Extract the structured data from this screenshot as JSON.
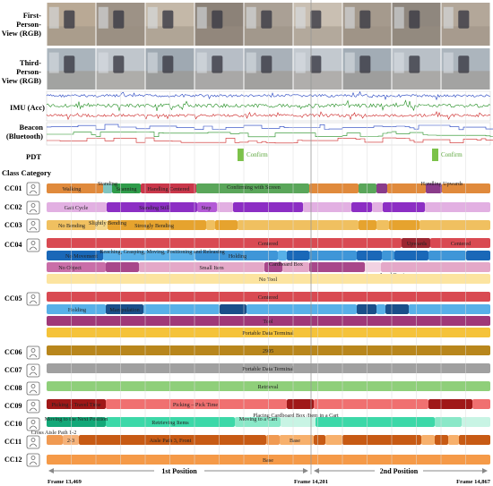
{
  "modalities": {
    "fpv_label": [
      "First-",
      "Person-",
      "View (RGB)"
    ],
    "tpv_label": [
      "Third-",
      "Person-",
      "View (RGB)"
    ],
    "imu_label": "IMU (Acc)",
    "beacon_label": [
      "Beacon",
      "(Bluetooth)"
    ],
    "pdt_label": "PDT",
    "pdt_events": [
      "Confirm",
      "Confirm"
    ]
  },
  "class_category_title": "Class Category",
  "colors": {
    "imu": [
      "#1f3fbf",
      "#1e8c1e",
      "#cc2222"
    ],
    "beacon": [
      "#1f3fbf",
      "#1e8c1e",
      "#cc2222"
    ],
    "pdt": "#7cc24a"
  },
  "rows": [
    {
      "id": "CC01",
      "icon": "body-icon",
      "tracks": [
        {
          "segments": [
            {
              "label": "Walking",
              "color": "#e08a3c"
            },
            {
              "label": "Standing",
              "color": "#7fc4c0"
            },
            {
              "label": "Scanning",
              "color": "#2f9c4a"
            },
            {
              "label": "Handling Centered",
              "color": "#c9374a"
            },
            {
              "label": "Confirming with Screen",
              "color": "#5aa65a"
            },
            {
              "label": "Handling Upwards",
              "color": "#8a3c8a"
            }
          ]
        }
      ]
    },
    {
      "id": "CC02",
      "icon": "legs-icon",
      "tracks": [
        {
          "segments": [
            {
              "label": "Gait Cycle",
              "color": "#e2b0e2"
            },
            {
              "label": "Standing Still",
              "color": "#8c2ec4"
            },
            {
              "label": "Step",
              "color": "#b35ad6"
            }
          ]
        }
      ]
    },
    {
      "id": "CC03",
      "icon": "torso-icon",
      "tracks": [
        {
          "segments": [
            {
              "label": "No Bending",
              "color": "#f0c060"
            },
            {
              "label": "Slightly Bending",
              "color": "#f3d68a"
            },
            {
              "label": "Strongly Bending",
              "color": "#e6a32e"
            }
          ]
        }
      ]
    },
    {
      "id": "CC04",
      "icon": "hand-left-icon",
      "tracks": [
        {
          "segments": [
            {
              "label": "Centered",
              "color": "#d94a52"
            },
            {
              "label": "Upwards",
              "color": "#9c2732"
            },
            {
              "label": "Centered",
              "color": "#d94a52"
            }
          ]
        },
        {
          "segments": [
            {
              "label": "No Movement",
              "color": "#1a68b8"
            },
            {
              "label": "Reaching, Grasping, Moving, Positioning and Releasing",
              "color": "#58b0e8"
            },
            {
              "label": "Holding",
              "color": "#3f96d8"
            }
          ]
        },
        {
          "segments": [
            {
              "label": "No Object",
              "color": "#c96ea8"
            },
            {
              "label": "Small Item",
              "color": "#e4a8c8"
            },
            {
              "label": "Cardboard Box",
              "color": "#a8478a"
            },
            {
              "label": "Load Carrier",
              "color": "#f2d2e2"
            }
          ]
        },
        {
          "segments": [
            {
              "label": "No Tool",
              "color": "#fce4a0"
            }
          ]
        }
      ]
    },
    {
      "id": "CC05",
      "icon": "hand-right-icon",
      "tracks": [
        {
          "segments": [
            {
              "label": "Centered",
              "color": "#d94a52"
            }
          ]
        },
        {
          "segments": [
            {
              "label": "Holding",
              "color": "#58b0e8"
            },
            {
              "label": "Manipulation",
              "color": "#1a4f8a"
            }
          ]
        },
        {
          "segments": [
            {
              "label": "Tool",
              "color": "#a03878"
            }
          ]
        },
        {
          "segments": [
            {
              "label": "Portable Data Terminal",
              "color": "#f5c33a"
            }
          ]
        }
      ]
    },
    {
      "id": "CC06",
      "icon": "clipboard-icon",
      "tracks": [
        {
          "segments": [
            {
              "label": "2905",
              "color": "#b8861c"
            }
          ]
        }
      ]
    },
    {
      "id": "CC07",
      "icon": "document-icon",
      "tracks": [
        {
          "segments": [
            {
              "label": "Portable Data Terminal",
              "color": "#a0a0a0"
            }
          ]
        }
      ]
    },
    {
      "id": "CC08",
      "icon": "scanner-icon",
      "tracks": [
        {
          "segments": [
            {
              "label": "Retrieval",
              "color": "#8fcf7a"
            }
          ]
        }
      ]
    },
    {
      "id": "CC09",
      "icon": "process-icon",
      "tracks": [
        {
          "segments": [
            {
              "label": "Picking – Travel Time",
              "color": "#a01818"
            },
            {
              "label": "Picking – Pick Time",
              "color": "#f07070"
            }
          ]
        }
      ]
    },
    {
      "id": "CC10",
      "icon": "workflow-icon",
      "tracks": [
        {
          "segments": [
            {
              "label": "Moving to the Next Position",
              "color": "#13a878"
            },
            {
              "label": "Retrieving Items",
              "color": "#3cd8a8"
            },
            {
              "label": "Moving to a Cart",
              "color": "#8ae8c8"
            },
            {
              "label": "Placing Cardboard Box /Item in a Cart",
              "color": "#c8f4e4"
            }
          ]
        }
      ]
    },
    {
      "id": "CC11",
      "icon": "location-icon",
      "tracks": [
        {
          "segments": [
            {
              "label": "Cross Aisle Path 1-2",
              "color": "#f09a52"
            },
            {
              "label": "2-3",
              "color": "#f5b27a"
            },
            {
              "label": "Aisle Path 3, Front",
              "color": "#c75a14"
            },
            {
              "label": "Base",
              "color": "#f7b06c"
            }
          ]
        }
      ]
    },
    {
      "id": "CC12",
      "icon": "map-pin-icon",
      "tracks": [
        {
          "segments": [
            {
              "label": "Base",
              "color": "#f59a48"
            }
          ]
        }
      ]
    }
  ],
  "timeline": {
    "frame_start": "Frame 13,469",
    "frame_mid": "Frame 14,201",
    "frame_end": "Frame 14,867",
    "position_1": "1st Position",
    "position_2": "2nd Position"
  }
}
